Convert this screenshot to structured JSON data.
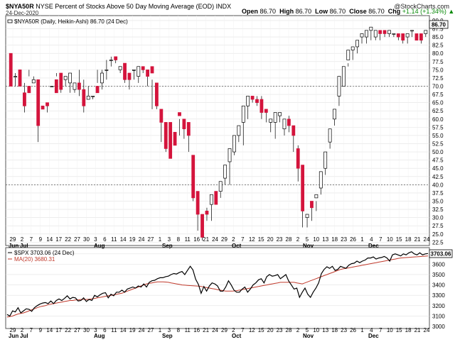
{
  "header": {
    "symbol": "$NYA50R",
    "description": "NYSE Percent of Stocks Above 50 Day Moving Average (EOD) INDX",
    "date": "24-Dec-2020",
    "open_label": "Open",
    "open": "86.70",
    "high_label": "High",
    "high": "86.70",
    "low_label": "Low",
    "low": "86.70",
    "close_label": "Close",
    "close": "86.70",
    "chg_label": "Chg",
    "chg": "+1.14 (+1.34%)",
    "chg_arrow": "▲",
    "logo": "@StockCharts.com",
    "colors": {
      "chg": "#0a8a0a"
    }
  },
  "chart_data": [
    {
      "type": "candlestick",
      "legend": "$NYA50R (Daily, Heikin-Ashi) 86.70 (24 Dec)",
      "last_value_label": "86.70",
      "ylim": [
        21.5,
        91.5
      ],
      "y_ticks": [
        "22.5",
        "25.0",
        "27.5",
        "30.0",
        "32.5",
        "35.0",
        "37.5",
        "40.0",
        "42.5",
        "45.0",
        "47.5",
        "50.0",
        "52.5",
        "55.0",
        "57.5",
        "60.0",
        "62.5",
        "65.0",
        "67.5",
        "70.0",
        "72.5",
        "75.0",
        "77.5",
        "80.0",
        "82.5",
        "85.0",
        "87.5",
        "90.0"
      ],
      "reference_lines": [
        70,
        40
      ],
      "candles": [
        [
          80,
          74,
          70,
          75
        ],
        [
          73,
          74,
          73,
          70
        ],
        [
          75,
          75,
          70,
          71
        ],
        [
          68,
          71,
          64,
          62
        ],
        [
          70,
          75,
          68,
          73
        ],
        [
          71,
          73,
          72,
          72
        ],
        [
          72,
          71,
          58,
          53
        ],
        [
          64,
          61,
          63,
          61
        ],
        [
          65,
          65,
          64,
          62
        ],
        [
          70,
          75,
          70,
          75
        ],
        [
          72,
          74,
          68,
          73
        ],
        [
          74,
          71,
          69,
          68
        ],
        [
          72,
          72,
          73,
          70
        ],
        [
          71,
          72,
          74,
          68
        ],
        [
          69,
          71,
          71,
          68
        ],
        [
          71,
          75,
          69,
          67
        ],
        [
          69,
          72,
          64,
          62
        ],
        [
          66,
          70,
          67,
          66
        ],
        [
          67,
          67,
          67,
          66
        ],
        [
          70,
          75,
          68,
          71
        ],
        [
          71,
          75,
          74,
          69
        ],
        [
          75,
          78,
          75,
          72
        ],
        [
          78,
          79,
          78,
          76
        ],
        [
          79,
          79,
          78,
          77
        ],
        [
          75,
          76,
          76,
          74
        ],
        [
          77,
          77,
          72,
          71
        ],
        [
          74,
          74,
          72,
          69
        ],
        [
          75,
          75,
          75,
          72
        ],
        [
          73,
          73,
          76,
          71
        ],
        [
          76,
          76,
          75,
          74
        ],
        [
          75,
          75,
          73,
          70
        ],
        [
          76,
          72,
          74,
          63
        ],
        [
          71,
          71,
          64,
          63
        ],
        [
          63,
          63,
          59,
          53
        ],
        [
          59,
          58,
          51,
          50
        ],
        [
          59,
          59,
          48,
          49
        ],
        [
          56,
          55,
          52,
          52
        ],
        [
          62,
          60,
          61,
          55
        ],
        [
          60,
          59,
          57,
          54
        ],
        [
          59,
          57,
          55,
          50
        ],
        [
          49,
          42,
          36,
          35
        ],
        [
          38,
          37,
          31,
          26
        ],
        [
          31,
          31,
          24,
          23
        ],
        [
          32,
          33,
          31,
          29
        ],
        [
          34,
          34,
          37,
          29
        ],
        [
          38,
          37,
          34,
          34
        ],
        [
          38,
          39,
          41,
          36
        ],
        [
          42,
          43,
          46,
          40
        ],
        [
          47,
          47,
          51,
          40
        ],
        [
          50,
          50,
          55,
          49
        ],
        [
          55,
          57,
          58,
          53
        ],
        [
          59,
          59,
          64,
          52
        ],
        [
          64,
          64,
          67,
          60
        ],
        [
          67,
          67,
          66,
          65
        ],
        [
          66,
          67,
          65,
          64
        ],
        [
          66,
          67,
          62,
          60
        ],
        [
          63,
          63,
          62,
          59
        ],
        [
          59,
          59,
          60,
          56
        ],
        [
          59,
          60,
          62,
          54
        ],
        [
          61,
          62,
          62,
          59
        ],
        [
          57,
          55,
          60,
          58
        ],
        [
          60,
          61,
          58,
          56
        ],
        [
          58,
          57,
          55,
          50
        ],
        [
          51,
          52,
          45,
          41
        ],
        [
          46,
          43,
          32,
          27
        ],
        [
          30,
          31,
          31,
          27
        ],
        [
          35,
          35,
          33,
          29
        ],
        [
          36,
          35,
          37,
          32
        ],
        [
          39,
          39,
          44,
          37
        ],
        [
          45,
          45,
          50,
          43
        ],
        [
          53,
          53,
          57,
          51
        ],
        [
          60,
          60,
          63,
          58
        ],
        [
          67,
          67,
          73,
          64
        ],
        [
          70,
          70,
          76,
          70
        ],
        [
          78,
          77,
          81,
          76
        ],
        [
          81,
          81,
          82,
          78
        ],
        [
          82,
          82,
          84,
          80
        ],
        [
          85,
          85,
          86,
          83
        ],
        [
          85,
          85,
          87,
          83
        ],
        [
          87,
          87,
          88,
          84
        ],
        [
          85,
          85,
          87,
          84
        ],
        [
          87,
          87,
          86,
          84
        ],
        [
          87,
          87,
          86,
          85
        ],
        [
          86,
          86,
          87,
          85
        ],
        [
          86,
          86,
          86,
          85
        ],
        [
          86,
          86,
          85,
          84
        ],
        [
          86,
          86,
          84,
          83
        ],
        [
          85,
          85,
          86,
          83
        ],
        [
          87,
          87,
          87,
          85
        ],
        [
          86,
          86,
          84,
          84
        ],
        [
          86,
          86,
          84,
          83
        ],
        [
          86,
          86,
          87,
          85
        ]
      ],
      "x_labels": [
        "29",
        "2",
        "7",
        "9",
        "14",
        "17",
        "22",
        "27",
        "30",
        "3",
        "6",
        "11",
        "14",
        "19",
        "24",
        "27",
        "1",
        "3",
        "8",
        "11",
        "16",
        "21",
        "24",
        "29",
        "2",
        "7",
        "12",
        "15",
        "20",
        "23",
        "28",
        "2",
        "5",
        "10",
        "13",
        "18",
        "23",
        "26",
        "1",
        "4",
        "7",
        "10",
        "15",
        "18",
        "21",
        "24"
      ],
      "month_labels": [
        "Jun",
        "Jul",
        "Aug",
        "Sep",
        "Oct",
        "Nov",
        "Dec"
      ]
    },
    {
      "type": "line",
      "legend_price": "$SPX 3703.06 (24 Dec)",
      "legend_ma": "MA(20) 3680.31",
      "last_value_label": "3703.06",
      "ylim": [
        3000,
        3760
      ],
      "y_ticks": [
        "3000",
        "3100",
        "3200",
        "3300",
        "3400",
        "3500",
        "3600",
        "3700"
      ],
      "series": [
        {
          "name": "$SPX 3703.06 (24 Dec)",
          "values": [
            3115,
            3100,
            3150,
            3140,
            3180,
            3130,
            3150,
            3170,
            3165,
            3145,
            3180,
            3200,
            3215,
            3225,
            3230,
            3220,
            3245,
            3220,
            3250,
            3265,
            3250,
            3270,
            3295,
            3265,
            3280,
            3275,
            3245,
            3250,
            3275,
            3240,
            3260,
            3250,
            3300,
            3285,
            3305,
            3320,
            3325,
            3275,
            3310,
            3295,
            3330,
            3330,
            3350,
            3330,
            3360,
            3370,
            3380,
            3370,
            3390,
            3380,
            3410,
            3380,
            3425,
            3440,
            3445,
            3460,
            3470,
            3470,
            3480,
            3485,
            3500,
            3510,
            3505,
            3520,
            3530,
            3500,
            3540,
            3580,
            3545,
            3455,
            3405,
            3320,
            3385,
            3340,
            3390,
            3420,
            3410,
            3390,
            3340,
            3340,
            3380,
            3440,
            3400,
            3350,
            3330,
            3330,
            3360,
            3380,
            3330,
            3360,
            3400,
            3420,
            3450,
            3460,
            3420,
            3480,
            3500,
            3485,
            3490,
            3500,
            3460,
            3480,
            3500,
            3440,
            3400,
            3360,
            3370,
            3280,
            3330,
            3370,
            3310,
            3280,
            3330,
            3370,
            3420,
            3510,
            3550,
            3575,
            3560,
            3580,
            3540,
            3550,
            3580,
            3570,
            3560,
            3590,
            3605,
            3610,
            3630,
            3615,
            3630,
            3640,
            3660,
            3660,
            3670,
            3650,
            3660,
            3665,
            3675,
            3660,
            3630,
            3690,
            3700,
            3690,
            3680,
            3700,
            3690,
            3710,
            3720,
            3700,
            3690,
            3710,
            3690,
            3700,
            3703
          ]
        },
        {
          "name": "MA(20) 3680.31",
          "values": [
            3090,
            3095,
            3100,
            3110,
            3120,
            3125,
            3130,
            3140,
            3150,
            3160,
            3170,
            3180,
            3190,
            3195,
            3200,
            3210,
            3215,
            3220,
            3225,
            3230,
            3235,
            3240,
            3245,
            3250,
            3250,
            3255,
            3255,
            3260,
            3260,
            3260,
            3262,
            3265,
            3270,
            3275,
            3280,
            3285,
            3290,
            3295,
            3300,
            3305,
            3310,
            3315,
            3320,
            3330,
            3340,
            3350,
            3360,
            3370,
            3380,
            3390,
            3400,
            3410,
            3415,
            3420,
            3425,
            3430,
            3430,
            3430,
            3428,
            3425,
            3420,
            3415,
            3410,
            3405,
            3400,
            3398,
            3396,
            3394,
            3392,
            3390,
            3388,
            3385,
            3380,
            3375,
            3370,
            3365,
            3360,
            3355,
            3350,
            3345,
            3340,
            3340,
            3340,
            3342,
            3345,
            3350,
            3355,
            3360,
            3365,
            3370,
            3375,
            3380,
            3385,
            3390,
            3395,
            3400,
            3405,
            3410,
            3415,
            3420,
            3425,
            3425,
            3425,
            3425,
            3425,
            3425,
            3420,
            3415,
            3410,
            3420,
            3430,
            3440,
            3450,
            3460,
            3470,
            3480,
            3490,
            3500,
            3510,
            3520,
            3530,
            3540,
            3550,
            3555,
            3560,
            3565,
            3570,
            3575,
            3580,
            3585,
            3590,
            3595,
            3600,
            3605,
            3610,
            3615,
            3620,
            3625,
            3630,
            3635,
            3640,
            3645,
            3650,
            3655,
            3660,
            3662,
            3664,
            3666,
            3668,
            3670,
            3672,
            3674,
            3676,
            3678,
            3680
          ]
        }
      ],
      "colors": {
        "price": "#000000",
        "ma": "#c0392b"
      }
    }
  ]
}
